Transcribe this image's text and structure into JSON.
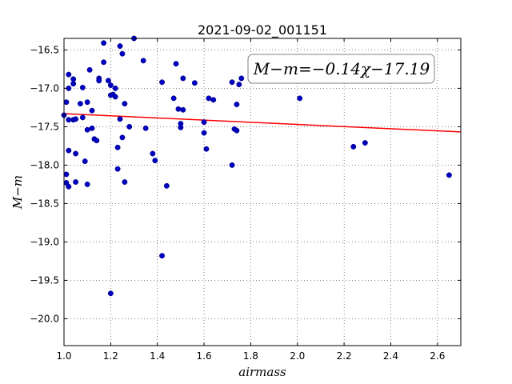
{
  "chart_data": {
    "type": "scatter",
    "title": "2021-09-02_001151",
    "xlabel": "airmass",
    "ylabel": "M−m",
    "xlim": [
      1.0,
      2.7
    ],
    "ylim": [
      -20.35,
      -16.35
    ],
    "y_inverted": true,
    "grid": true,
    "grid_style": "dotted",
    "marker_color": "#0000bf",
    "fit_color": "#ff0000",
    "xticks": [
      "1.0",
      "1.2",
      "1.4",
      "1.6",
      "1.8",
      "2.0",
      "2.2",
      "2.4",
      "2.6"
    ],
    "yticks": [
      "−16.5",
      "−17.0",
      "−17.5",
      "−18.0",
      "−18.5",
      "−19.0",
      "−19.5",
      "−20.0"
    ],
    "fit": {
      "slope": -0.14,
      "intercept": -17.19
    },
    "annotation": "M−m=−0.14χ−17.19",
    "annotation_placement": "top-right",
    "points": [
      {
        "x": 1.0,
        "y": -17.35
      },
      {
        "x": 1.01,
        "y": -17.18
      },
      {
        "x": 1.01,
        "y": -18.23
      },
      {
        "x": 1.01,
        "y": -18.12
      },
      {
        "x": 1.02,
        "y": -16.82
      },
      {
        "x": 1.02,
        "y": -17.0
      },
      {
        "x": 1.02,
        "y": -17.41
      },
      {
        "x": 1.02,
        "y": -17.81
      },
      {
        "x": 1.02,
        "y": -18.28
      },
      {
        "x": 1.04,
        "y": -16.88
      },
      {
        "x": 1.04,
        "y": -16.94
      },
      {
        "x": 1.04,
        "y": -17.41
      },
      {
        "x": 1.05,
        "y": -17.4
      },
      {
        "x": 1.05,
        "y": -17.85
      },
      {
        "x": 1.05,
        "y": -18.22
      },
      {
        "x": 1.07,
        "y": -17.2
      },
      {
        "x": 1.08,
        "y": -16.99
      },
      {
        "x": 1.08,
        "y": -17.38
      },
      {
        "x": 1.09,
        "y": -17.95
      },
      {
        "x": 1.1,
        "y": -17.18
      },
      {
        "x": 1.1,
        "y": -17.54
      },
      {
        "x": 1.1,
        "y": -18.25
      },
      {
        "x": 1.11,
        "y": -16.76
      },
      {
        "x": 1.12,
        "y": -17.29
      },
      {
        "x": 1.12,
        "y": -17.52
      },
      {
        "x": 1.13,
        "y": -17.66
      },
      {
        "x": 1.14,
        "y": -17.68
      },
      {
        "x": 1.15,
        "y": -16.87
      },
      {
        "x": 1.15,
        "y": -16.9
      },
      {
        "x": 1.17,
        "y": -16.41
      },
      {
        "x": 1.17,
        "y": -16.66
      },
      {
        "x": 1.19,
        "y": -16.9
      },
      {
        "x": 1.2,
        "y": -16.96
      },
      {
        "x": 1.2,
        "y": -17.09
      },
      {
        "x": 1.2,
        "y": -19.67
      },
      {
        "x": 1.21,
        "y": -17.08
      },
      {
        "x": 1.22,
        "y": -17.0
      },
      {
        "x": 1.22,
        "y": -17.11
      },
      {
        "x": 1.23,
        "y": -17.77
      },
      {
        "x": 1.23,
        "y": -18.05
      },
      {
        "x": 1.24,
        "y": -16.45
      },
      {
        "x": 1.24,
        "y": -17.4
      },
      {
        "x": 1.25,
        "y": -16.55
      },
      {
        "x": 1.25,
        "y": -17.64
      },
      {
        "x": 1.26,
        "y": -17.2
      },
      {
        "x": 1.26,
        "y": -18.22
      },
      {
        "x": 1.28,
        "y": -17.5
      },
      {
        "x": 1.3,
        "y": -16.35
      },
      {
        "x": 1.34,
        "y": -16.64
      },
      {
        "x": 1.35,
        "y": -17.52
      },
      {
        "x": 1.38,
        "y": -17.85
      },
      {
        "x": 1.39,
        "y": -17.94
      },
      {
        "x": 1.42,
        "y": -16.92
      },
      {
        "x": 1.42,
        "y": -19.18
      },
      {
        "x": 1.44,
        "y": -18.27
      },
      {
        "x": 1.47,
        "y": -17.13
      },
      {
        "x": 1.48,
        "y": -16.68
      },
      {
        "x": 1.49,
        "y": -17.27
      },
      {
        "x": 1.5,
        "y": -17.46
      },
      {
        "x": 1.5,
        "y": -17.51
      },
      {
        "x": 1.51,
        "y": -17.28
      },
      {
        "x": 1.51,
        "y": -16.87
      },
      {
        "x": 1.56,
        "y": -16.93
      },
      {
        "x": 1.6,
        "y": -17.44
      },
      {
        "x": 1.6,
        "y": -17.58
      },
      {
        "x": 1.61,
        "y": -17.79
      },
      {
        "x": 1.62,
        "y": -17.13
      },
      {
        "x": 1.64,
        "y": -17.15
      },
      {
        "x": 1.72,
        "y": -16.92
      },
      {
        "x": 1.72,
        "y": -18.0
      },
      {
        "x": 1.73,
        "y": -17.53
      },
      {
        "x": 1.74,
        "y": -17.55
      },
      {
        "x": 1.74,
        "y": -17.21
      },
      {
        "x": 1.75,
        "y": -16.95
      },
      {
        "x": 1.76,
        "y": -16.87
      },
      {
        "x": 2.01,
        "y": -17.13
      },
      {
        "x": 2.24,
        "y": -17.76
      },
      {
        "x": 2.29,
        "y": -17.71
      },
      {
        "x": 2.65,
        "y": -18.13
      }
    ]
  }
}
